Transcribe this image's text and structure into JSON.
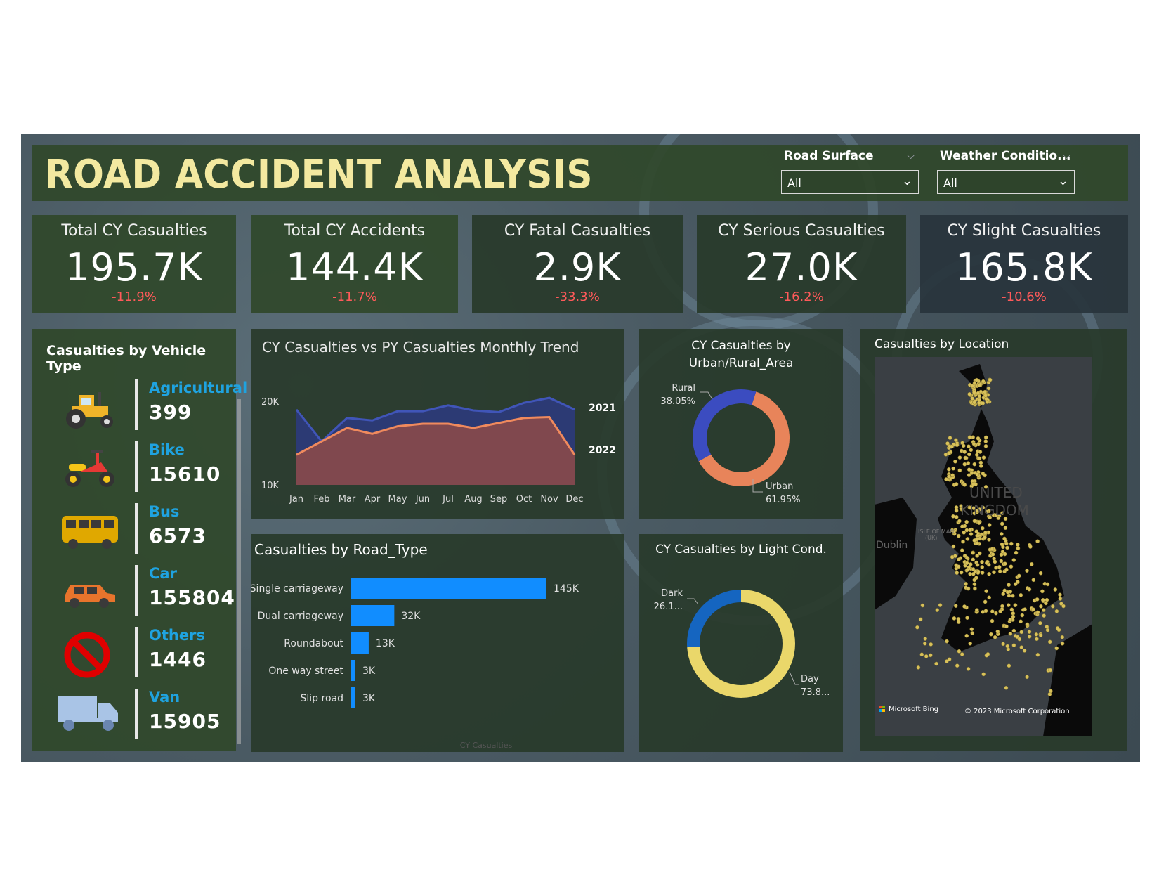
{
  "header": {
    "title": "ROAD ACCIDENT ANALYSIS"
  },
  "slicers": [
    {
      "label": "Road Surface",
      "value": "All"
    },
    {
      "label": "Weather Conditio...",
      "value": "All"
    }
  ],
  "kpis": [
    {
      "title": "Total CY Casualties",
      "value": "195.7K",
      "delta": "-11.9%"
    },
    {
      "title": "Total CY Accidents",
      "value": "144.4K",
      "delta": "-11.7%"
    },
    {
      "title": "CY Fatal Casualties",
      "value": "2.9K",
      "delta": "-33.3%"
    },
    {
      "title": "CY Serious Casualties",
      "value": "27.0K",
      "delta": "-16.2%"
    },
    {
      "title": "CY Slight Casualties",
      "value": "165.8K",
      "delta": "-10.6%"
    }
  ],
  "vehicle_panel": {
    "title": "Casualties by Vehicle Type",
    "items": [
      {
        "name": "Agricultural",
        "value": "399",
        "icon": "tractor-icon"
      },
      {
        "name": "Bike",
        "value": "15610",
        "icon": "motorbike-icon"
      },
      {
        "name": "Bus",
        "value": "6573",
        "icon": "bus-icon"
      },
      {
        "name": "Car",
        "value": "155804",
        "icon": "car-icon"
      },
      {
        "name": "Others",
        "value": "1446",
        "icon": "no-entry-icon"
      },
      {
        "name": "Van",
        "value": "15905",
        "icon": "van-icon"
      }
    ]
  },
  "colors": {
    "cy_area": "#2c3a78",
    "py_line": "#f08a5d",
    "py_area": "#8a4a4a",
    "bar_blue": "#118dff",
    "rural": "#3b4cc0",
    "urban": "#e8845a",
    "dark": "#1565c0",
    "day": "#ead76a",
    "kpi_negative": "#ff5a5a",
    "title_yellow": "#f3e9a0"
  },
  "chart_data": [
    {
      "type": "area",
      "title": "CY Casualties vs PY Casualties Monthly Trend",
      "categories": [
        "Jan",
        "Feb",
        "Mar",
        "Apr",
        "May",
        "Jun",
        "Jul",
        "Aug",
        "Sep",
        "Oct",
        "Nov",
        "Dec"
      ],
      "yticks": [
        "10K",
        "20K"
      ],
      "ylim": [
        10000,
        21500
      ],
      "series": [
        {
          "name": "2021",
          "values": [
            19000,
            15200,
            18000,
            17700,
            18800,
            18800,
            19500,
            18900,
            18700,
            19800,
            20400,
            19000
          ]
        },
        {
          "name": "2022",
          "values": [
            13600,
            15200,
            16800,
            16100,
            17000,
            17300,
            17300,
            16800,
            17400,
            18000,
            18100,
            13600
          ]
        }
      ]
    },
    {
      "type": "bar",
      "title": "Casualties by Road_Type",
      "xlabel": "CY Casualties",
      "categories": [
        "Single carriageway",
        "Dual carriageway",
        "Roundabout",
        "One way street",
        "Slip road"
      ],
      "values": [
        145000,
        32000,
        13000,
        3000,
        3000
      ],
      "data_labels": [
        "145K",
        "32K",
        "13K",
        "3K",
        "3K"
      ]
    },
    {
      "type": "pie",
      "title": "CY Casualties by Urban/Rural_Area",
      "categories": [
        "Rural",
        "Urban"
      ],
      "values": [
        38.05,
        61.95
      ],
      "data_labels": [
        "38.05%",
        "61.95%"
      ]
    },
    {
      "type": "pie",
      "title": "CY Casualties by Light Cond.",
      "categories": [
        "Dark",
        "Day"
      ],
      "values": [
        26.1,
        73.9
      ],
      "data_labels": [
        "26.1...",
        "73.8..."
      ]
    }
  ],
  "map": {
    "title": "Casualties by Location",
    "labels": [
      "UNITED",
      "KINGDOM",
      "Dublin",
      "ISLE OF MAN",
      "(UK)"
    ],
    "attribution_left": "Microsoft Bing",
    "attribution_right": "© 2023 Microsoft Corporation"
  }
}
